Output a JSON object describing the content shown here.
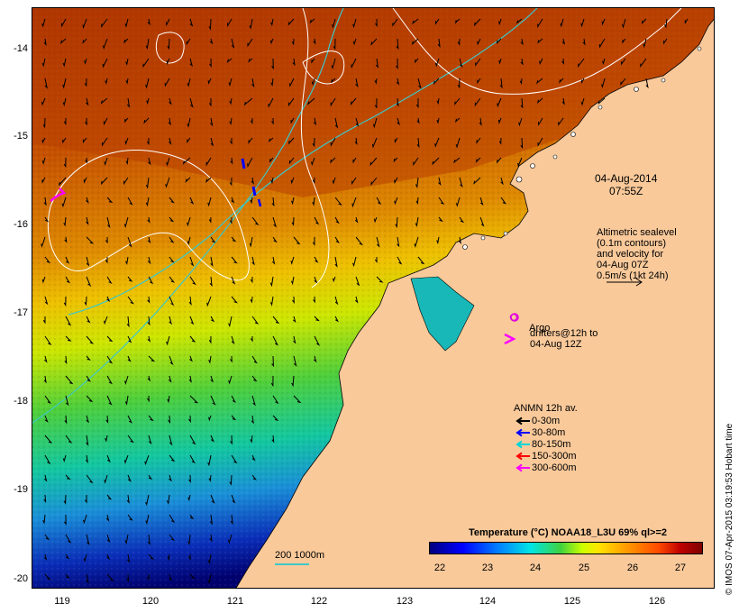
{
  "map": {
    "date_label": "04-Aug-2014\n07:55Z",
    "altimetry_text": "Altimetric sealevel\n(0.1m contours)\nand velocity for\n04-Aug 07Z\n0.5m/s (1kt 24h)",
    "argo_label": "Argo",
    "drifters_text": "drifters@12h to\n04-Aug 12Z",
    "anmn_title": "ANMN 12h av.",
    "anmn_legend": [
      {
        "label": "0-30m",
        "color": "#000000"
      },
      {
        "label": "30-80m",
        "color": "#0000ff"
      },
      {
        "label": "80-150m",
        "color": "#00d5d5"
      },
      {
        "label": "150-300m",
        "color": "#ff0000"
      },
      {
        "label": "300-600m",
        "color": "#ff00ff"
      }
    ],
    "colorbar": {
      "title": "Temperature (°C) NOAA18_L3U 69% ql>=2",
      "ticks": [
        "22",
        "23",
        "24",
        "25",
        "26",
        "27"
      ]
    },
    "scale_label": "200  1000m",
    "credit": "© IMOS 07-Apr-2015 03:19:53 Hobart time",
    "lat_ticks": [
      "-14",
      "-15",
      "-16",
      "-17",
      "-18",
      "-19",
      "-20"
    ],
    "lon_ticks": [
      "119",
      "120",
      "121",
      "122",
      "123",
      "124",
      "125",
      "126"
    ],
    "colors": {
      "land": "#f9c99a",
      "contour": "#ffffff",
      "isobath": "#3cc8c8",
      "argo": "#e000e0",
      "drifter": "#ff00ff"
    }
  }
}
